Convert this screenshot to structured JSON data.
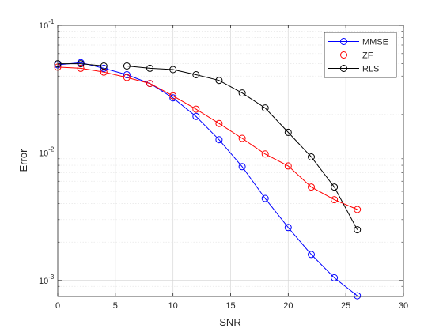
{
  "chart_data": {
    "type": "line",
    "xlabel": "SNR",
    "ylabel": "Error",
    "xlim": [
      0,
      30
    ],
    "ylim": [
      0.00075,
      0.1
    ],
    "yscale": "log",
    "grid": true,
    "minor_grid": true,
    "legend_position": "top-right",
    "x_ticks": [
      0,
      5,
      10,
      15,
      20,
      25,
      30
    ],
    "x_tick_labels": [
      "0",
      "5",
      "10",
      "15",
      "20",
      "25",
      "30"
    ],
    "y_ticks": [
      0.001,
      0.01,
      0.1
    ],
    "y_tick_labels": [
      {
        "base": "10",
        "exp": "-3"
      },
      {
        "base": "10",
        "exp": "-2"
      },
      {
        "base": "10",
        "exp": "-1"
      }
    ],
    "series": [
      {
        "name": "MMSE",
        "color": "#0000ff",
        "marker": "circle",
        "x": [
          0,
          2,
          4,
          6,
          8,
          10,
          12,
          14,
          16,
          18,
          20,
          22,
          24,
          26
        ],
        "y": [
          0.049,
          0.051,
          0.046,
          0.041,
          0.035,
          0.027,
          0.0193,
          0.0127,
          0.0078,
          0.0044,
          0.0026,
          0.0016,
          0.00105,
          0.00076
        ]
      },
      {
        "name": "ZF",
        "color": "#ff0000",
        "marker": "circle",
        "x": [
          0,
          2,
          4,
          6,
          8,
          10,
          12,
          14,
          16,
          18,
          20,
          22,
          24,
          26
        ],
        "y": [
          0.047,
          0.046,
          0.043,
          0.039,
          0.035,
          0.028,
          0.022,
          0.017,
          0.013,
          0.0098,
          0.0079,
          0.0054,
          0.0043,
          0.0036
        ]
      },
      {
        "name": "RLS",
        "color": "#000000",
        "marker": "circle",
        "x": [
          0,
          2,
          4,
          6,
          8,
          10,
          12,
          14,
          16,
          18,
          20,
          22,
          24,
          26
        ],
        "y": [
          0.05,
          0.05,
          0.048,
          0.048,
          0.046,
          0.045,
          0.041,
          0.037,
          0.0295,
          0.0225,
          0.0145,
          0.0093,
          0.0054,
          0.0025
        ]
      }
    ]
  }
}
